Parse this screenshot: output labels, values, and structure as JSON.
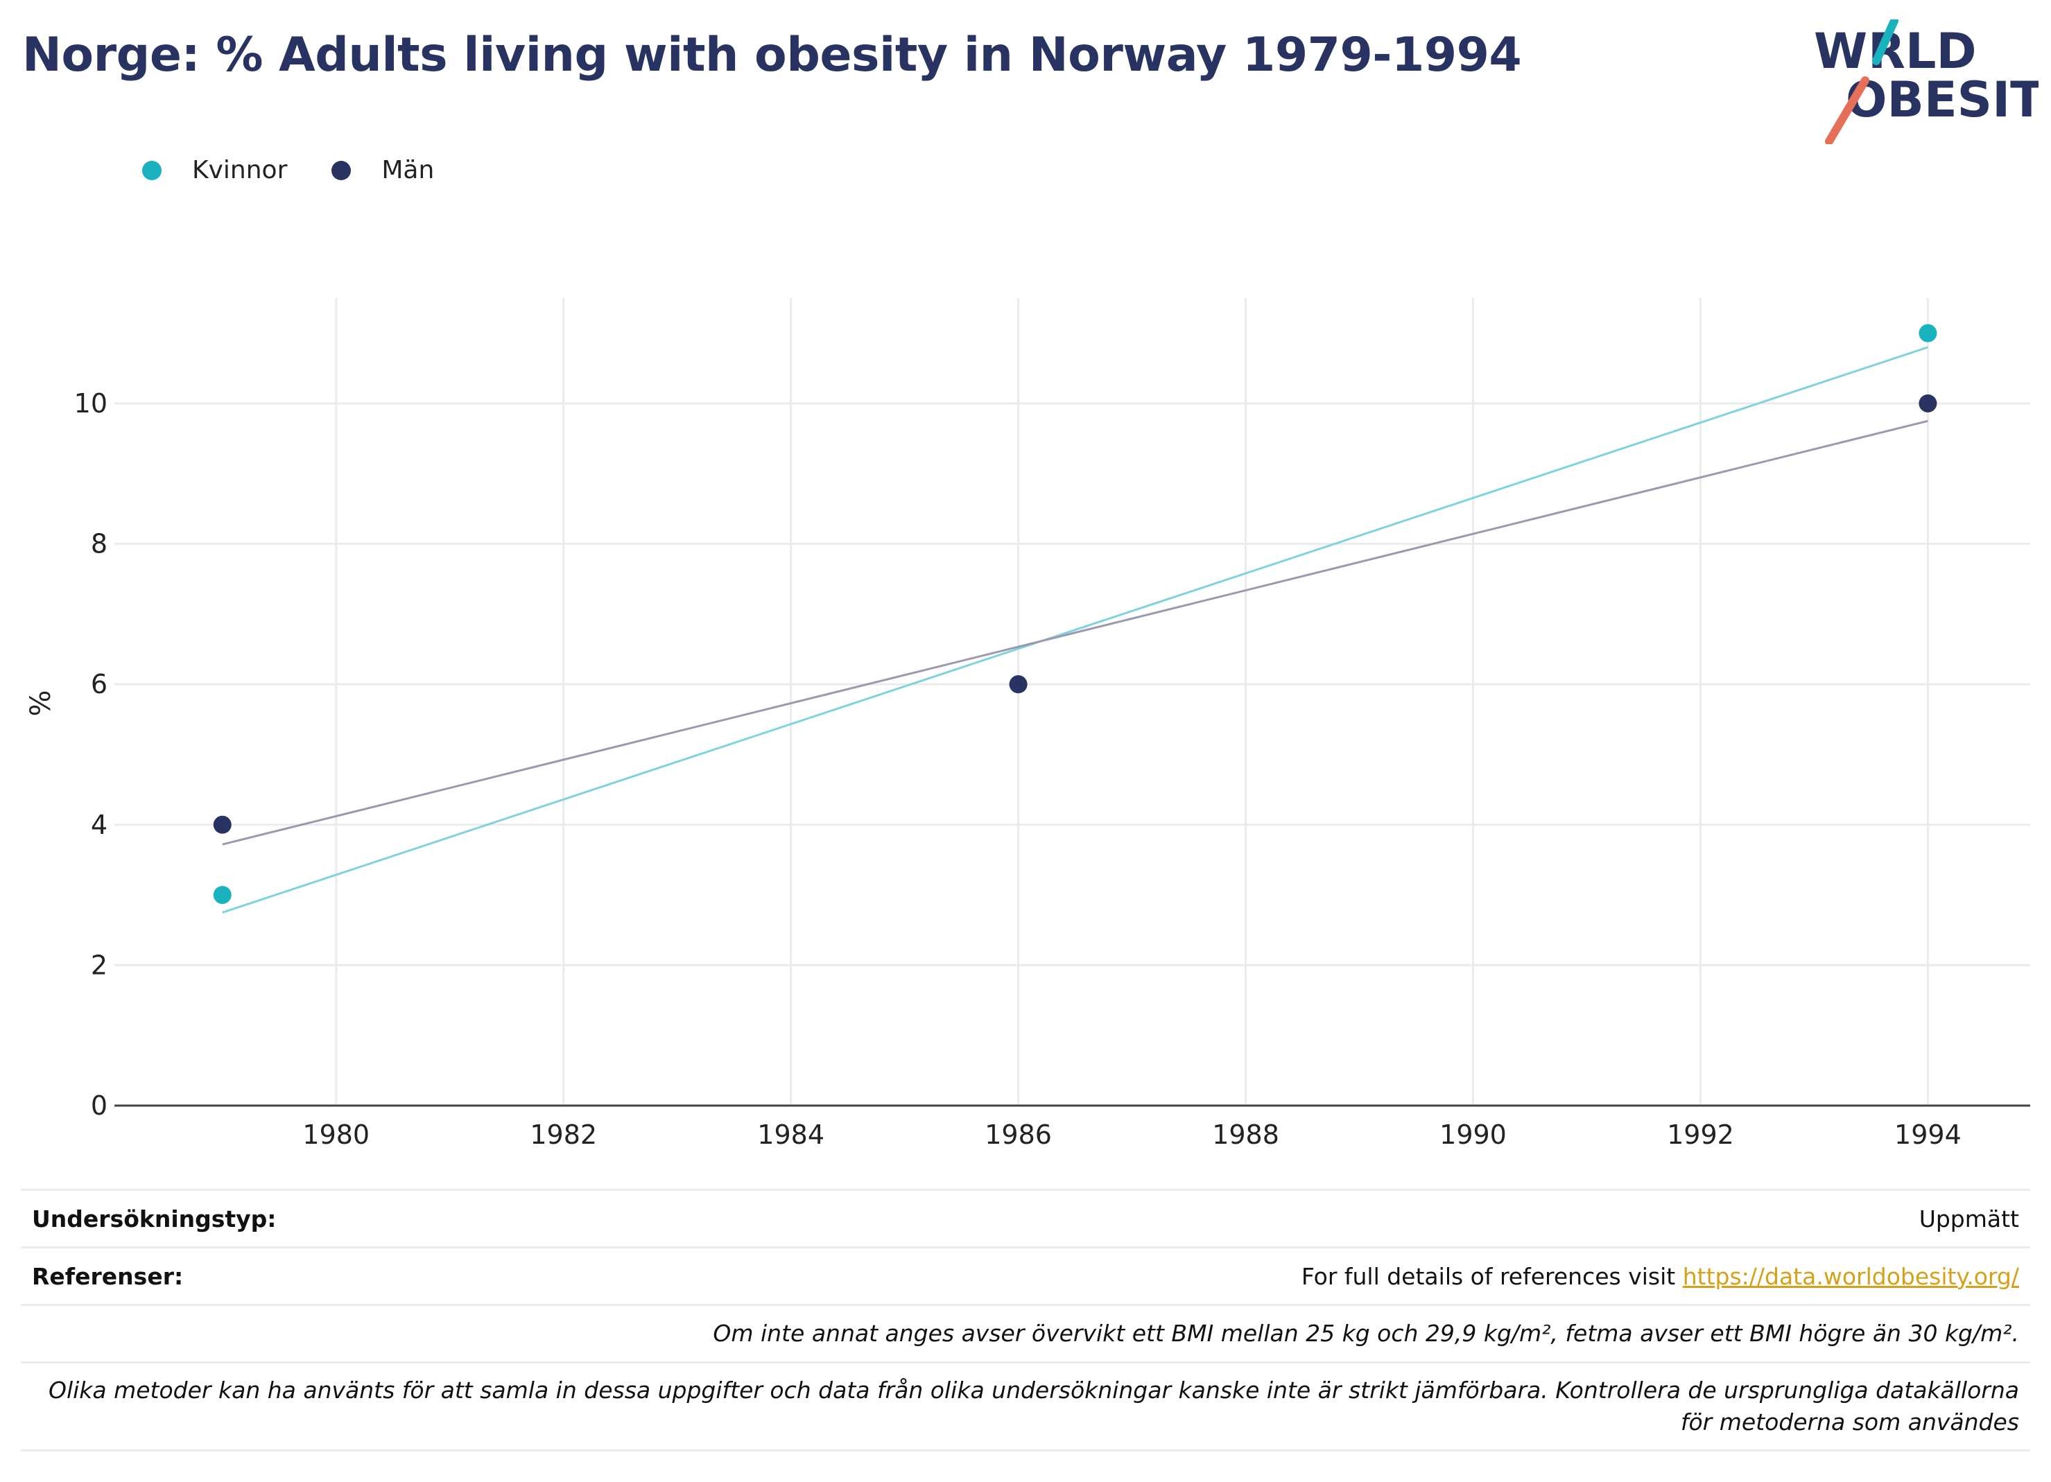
{
  "title": "Norge: % Adults living with obesity in Norway 1979-1994",
  "logo": {
    "line1": "WORLD",
    "line2": "OBESITY"
  },
  "colors": {
    "kvinnor": "#1ab2be",
    "man": "#283361",
    "kvinnor_trend": "#7fd3da",
    "man_trend": "#9a9aae",
    "title": "#283361",
    "link": "#d4a21a"
  },
  "chart_data": {
    "type": "scatter",
    "title": "Norge: % Adults living with obesity in Norway 1979-1994",
    "xlabel": "",
    "ylabel": "%",
    "xlim": [
      1979,
      1994
    ],
    "ylim": [
      0,
      11.5
    ],
    "x_ticks": [
      1980,
      1982,
      1984,
      1986,
      1988,
      1990,
      1992,
      1994
    ],
    "y_ticks": [
      0,
      2,
      4,
      6,
      8,
      10
    ],
    "grid": true,
    "legend_position": "top-left",
    "series": [
      {
        "name": "Kvinnor",
        "points": [
          {
            "x": 1979,
            "y": 3
          },
          {
            "x": 1986,
            "y": 6
          },
          {
            "x": 1994,
            "y": 11
          }
        ],
        "trend": [
          {
            "x": 1979,
            "y": 2.75
          },
          {
            "x": 1994,
            "y": 10.8
          }
        ]
      },
      {
        "name": "Män",
        "points": [
          {
            "x": 1979,
            "y": 4
          },
          {
            "x": 1986,
            "y": 6
          },
          {
            "x": 1994,
            "y": 10
          }
        ],
        "trend": [
          {
            "x": 1979,
            "y": 3.72
          },
          {
            "x": 1994,
            "y": 9.75
          }
        ]
      }
    ]
  },
  "table": {
    "survey_type_label": "Undersökningstyp:",
    "survey_type_value": "Uppmätt",
    "references_label": "Referenser:",
    "references_text": "For full details of references visit ",
    "references_link": "https://data.worldobesity.org/",
    "note1": "Om inte annat anges avser övervikt ett BMI mellan 25 kg och 29,9 kg/m², fetma avser ett BMI högre än 30 kg/m².",
    "note2": "Olika metoder kan ha använts för att samla in dessa uppgifter och data från olika undersökningar kanske inte är strikt jämförbara. Kontrollera de ursprungliga datakällorna för metoderna som användes"
  }
}
